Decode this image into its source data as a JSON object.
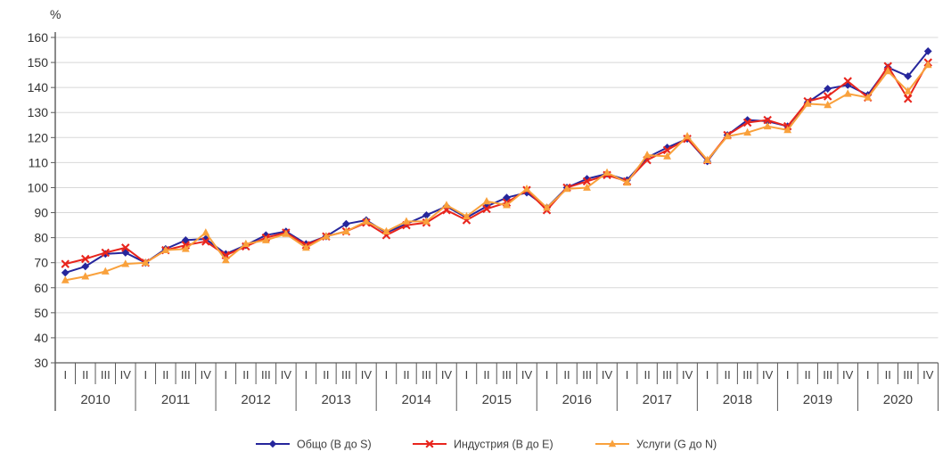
{
  "chart_data": {
    "type": "line",
    "title": "",
    "ylabel": "%",
    "xlabel": "",
    "ylim": [
      30,
      160
    ],
    "ytick_step": 10,
    "grid": "horizontal",
    "legend_position": "bottom",
    "years": [
      "2010",
      "2011",
      "2012",
      "2013",
      "2014",
      "2015",
      "2016",
      "2017",
      "2018",
      "2019",
      "2020"
    ],
    "quarter_labels": [
      "I",
      "II",
      "III",
      "IV"
    ],
    "axis_color": "#595959",
    "gridline_color": "#D8D8D8",
    "tick_label_color": "#333333",
    "series": [
      {
        "name": "Общо (B до S)",
        "color": "#26269C",
        "marker": "diamond",
        "values": [
          66,
          68.5,
          73.5,
          74,
          70,
          75.5,
          79,
          79.5,
          73.5,
          77,
          81,
          82.5,
          77.5,
          80.5,
          85.5,
          87,
          82,
          85.5,
          89,
          92.5,
          88,
          92.5,
          96,
          98,
          92,
          100,
          103.5,
          105.5,
          103,
          112,
          116,
          119.5,
          110.5,
          121,
          127,
          126.5,
          124.5,
          134,
          139.5,
          141,
          137,
          148,
          144.5,
          154.5
        ]
      },
      {
        "name": "Индустрия (B до E)",
        "color": "#E8251D",
        "marker": "x",
        "values": [
          69.5,
          71.5,
          74,
          76,
          70,
          75,
          77,
          78.5,
          73,
          76.5,
          80,
          82,
          77,
          80.5,
          82.5,
          86,
          81,
          85,
          86,
          91,
          87,
          91.5,
          94,
          99,
          91,
          100,
          102.5,
          105,
          102.5,
          111,
          115,
          119.5,
          111,
          121,
          126,
          127,
          124.5,
          134.5,
          136.5,
          142.5,
          136,
          148.5,
          135.5,
          150
        ]
      },
      {
        "name": "Услуги (G до N)",
        "color": "#F9A13C",
        "marker": "triangle",
        "values": [
          63,
          64.5,
          66.5,
          69.5,
          70,
          75,
          75.5,
          82,
          71,
          77.5,
          79,
          81.5,
          76,
          80.5,
          82.5,
          86.5,
          82.5,
          86.5,
          86.5,
          93,
          88.5,
          94.5,
          93,
          99.5,
          92,
          99.5,
          100,
          106,
          102,
          113,
          112.5,
          120.5,
          111,
          120.5,
          122,
          124.5,
          123,
          133.5,
          133,
          137.5,
          136,
          146.5,
          138.5,
          149
        ]
      }
    ]
  }
}
